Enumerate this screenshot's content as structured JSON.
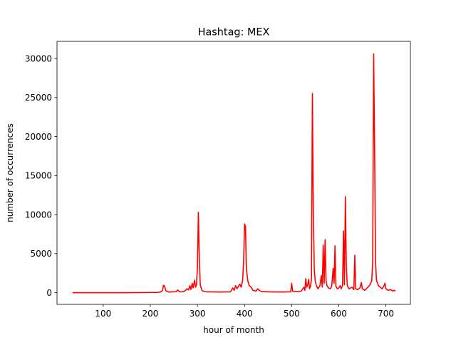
{
  "chart_data": {
    "type": "line",
    "title": "Hashtag: MEX",
    "xlabel": "hour of month",
    "ylabel": "number of occurrences",
    "xlim": [
      2,
      752
    ],
    "ylim": [
      -1500,
      32200
    ],
    "xticks": [
      100,
      200,
      300,
      400,
      500,
      600,
      700
    ],
    "yticks": [
      0,
      5000,
      10000,
      15000,
      20000,
      25000,
      30000
    ],
    "grid": false,
    "legend": "none",
    "series": [
      {
        "color": "#ff0000",
        "points": [
          [
            35,
            0
          ],
          [
            150,
            0
          ],
          [
            205,
            30
          ],
          [
            215,
            40
          ],
          [
            222,
            80
          ],
          [
            226,
            300
          ],
          [
            228,
            950
          ],
          [
            230,
            850
          ],
          [
            233,
            250
          ],
          [
            240,
            80
          ],
          [
            255,
            120
          ],
          [
            258,
            350
          ],
          [
            262,
            100
          ],
          [
            270,
            120
          ],
          [
            275,
            300
          ],
          [
            278,
            500
          ],
          [
            281,
            350
          ],
          [
            284,
            900
          ],
          [
            286,
            400
          ],
          [
            289,
            1200
          ],
          [
            291,
            600
          ],
          [
            294,
            1600
          ],
          [
            296,
            700
          ],
          [
            298,
            1000
          ],
          [
            300,
            3200
          ],
          [
            302,
            10300
          ],
          [
            304,
            4500
          ],
          [
            306,
            1000
          ],
          [
            310,
            250
          ],
          [
            320,
            100
          ],
          [
            350,
            80
          ],
          [
            370,
            100
          ],
          [
            375,
            600
          ],
          [
            378,
            300
          ],
          [
            381,
            900
          ],
          [
            384,
            500
          ],
          [
            387,
            800
          ],
          [
            390,
            1100
          ],
          [
            393,
            700
          ],
          [
            396,
            1600
          ],
          [
            398,
            3900
          ],
          [
            400,
            8800
          ],
          [
            402,
            8500
          ],
          [
            404,
            3000
          ],
          [
            407,
            1500
          ],
          [
            410,
            900
          ],
          [
            414,
            700
          ],
          [
            418,
            300
          ],
          [
            424,
            200
          ],
          [
            428,
            500
          ],
          [
            431,
            300
          ],
          [
            436,
            150
          ],
          [
            450,
            100
          ],
          [
            480,
            80
          ],
          [
            498,
            100
          ],
          [
            500,
            1200
          ],
          [
            502,
            200
          ],
          [
            510,
            150
          ],
          [
            520,
            200
          ],
          [
            526,
            700
          ],
          [
            528,
            300
          ],
          [
            530,
            1800
          ],
          [
            532,
            700
          ],
          [
            534,
            1000
          ],
          [
            536,
            1700
          ],
          [
            538,
            500
          ],
          [
            540,
            800
          ],
          [
            542,
            1800
          ],
          [
            544,
            25500
          ],
          [
            546,
            10000
          ],
          [
            548,
            3000
          ],
          [
            550,
            1500
          ],
          [
            553,
            800
          ],
          [
            556,
            500
          ],
          [
            560,
            900
          ],
          [
            563,
            2200
          ],
          [
            565,
            700
          ],
          [
            567,
            6100
          ],
          [
            569,
            1200
          ],
          [
            571,
            6800
          ],
          [
            573,
            1500
          ],
          [
            575,
            900
          ],
          [
            578,
            600
          ],
          [
            582,
            500
          ],
          [
            585,
            800
          ],
          [
            588,
            3100
          ],
          [
            590,
            1200
          ],
          [
            592,
            6000
          ],
          [
            594,
            800
          ],
          [
            597,
            500
          ],
          [
            600,
            600
          ],
          [
            603,
            900
          ],
          [
            605,
            500
          ],
          [
            608,
            900
          ],
          [
            610,
            7900
          ],
          [
            612,
            1000
          ],
          [
            614,
            12300
          ],
          [
            616,
            3500
          ],
          [
            618,
            900
          ],
          [
            622,
            500
          ],
          [
            628,
            700
          ],
          [
            632,
            400
          ],
          [
            634,
            4800
          ],
          [
            636,
            500
          ],
          [
            640,
            400
          ],
          [
            645,
            600
          ],
          [
            648,
            1300
          ],
          [
            650,
            500
          ],
          [
            655,
            300
          ],
          [
            660,
            600
          ],
          [
            665,
            900
          ],
          [
            670,
            1500
          ],
          [
            672,
            4000
          ],
          [
            674,
            30600
          ],
          [
            676,
            19000
          ],
          [
            678,
            4000
          ],
          [
            680,
            1600
          ],
          [
            684,
            900
          ],
          [
            688,
            700
          ],
          [
            692,
            500
          ],
          [
            696,
            900
          ],
          [
            698,
            1200
          ],
          [
            700,
            500
          ],
          [
            705,
            300
          ],
          [
            710,
            400
          ],
          [
            714,
            200
          ],
          [
            718,
            300
          ],
          [
            720,
            200
          ]
        ]
      }
    ]
  }
}
